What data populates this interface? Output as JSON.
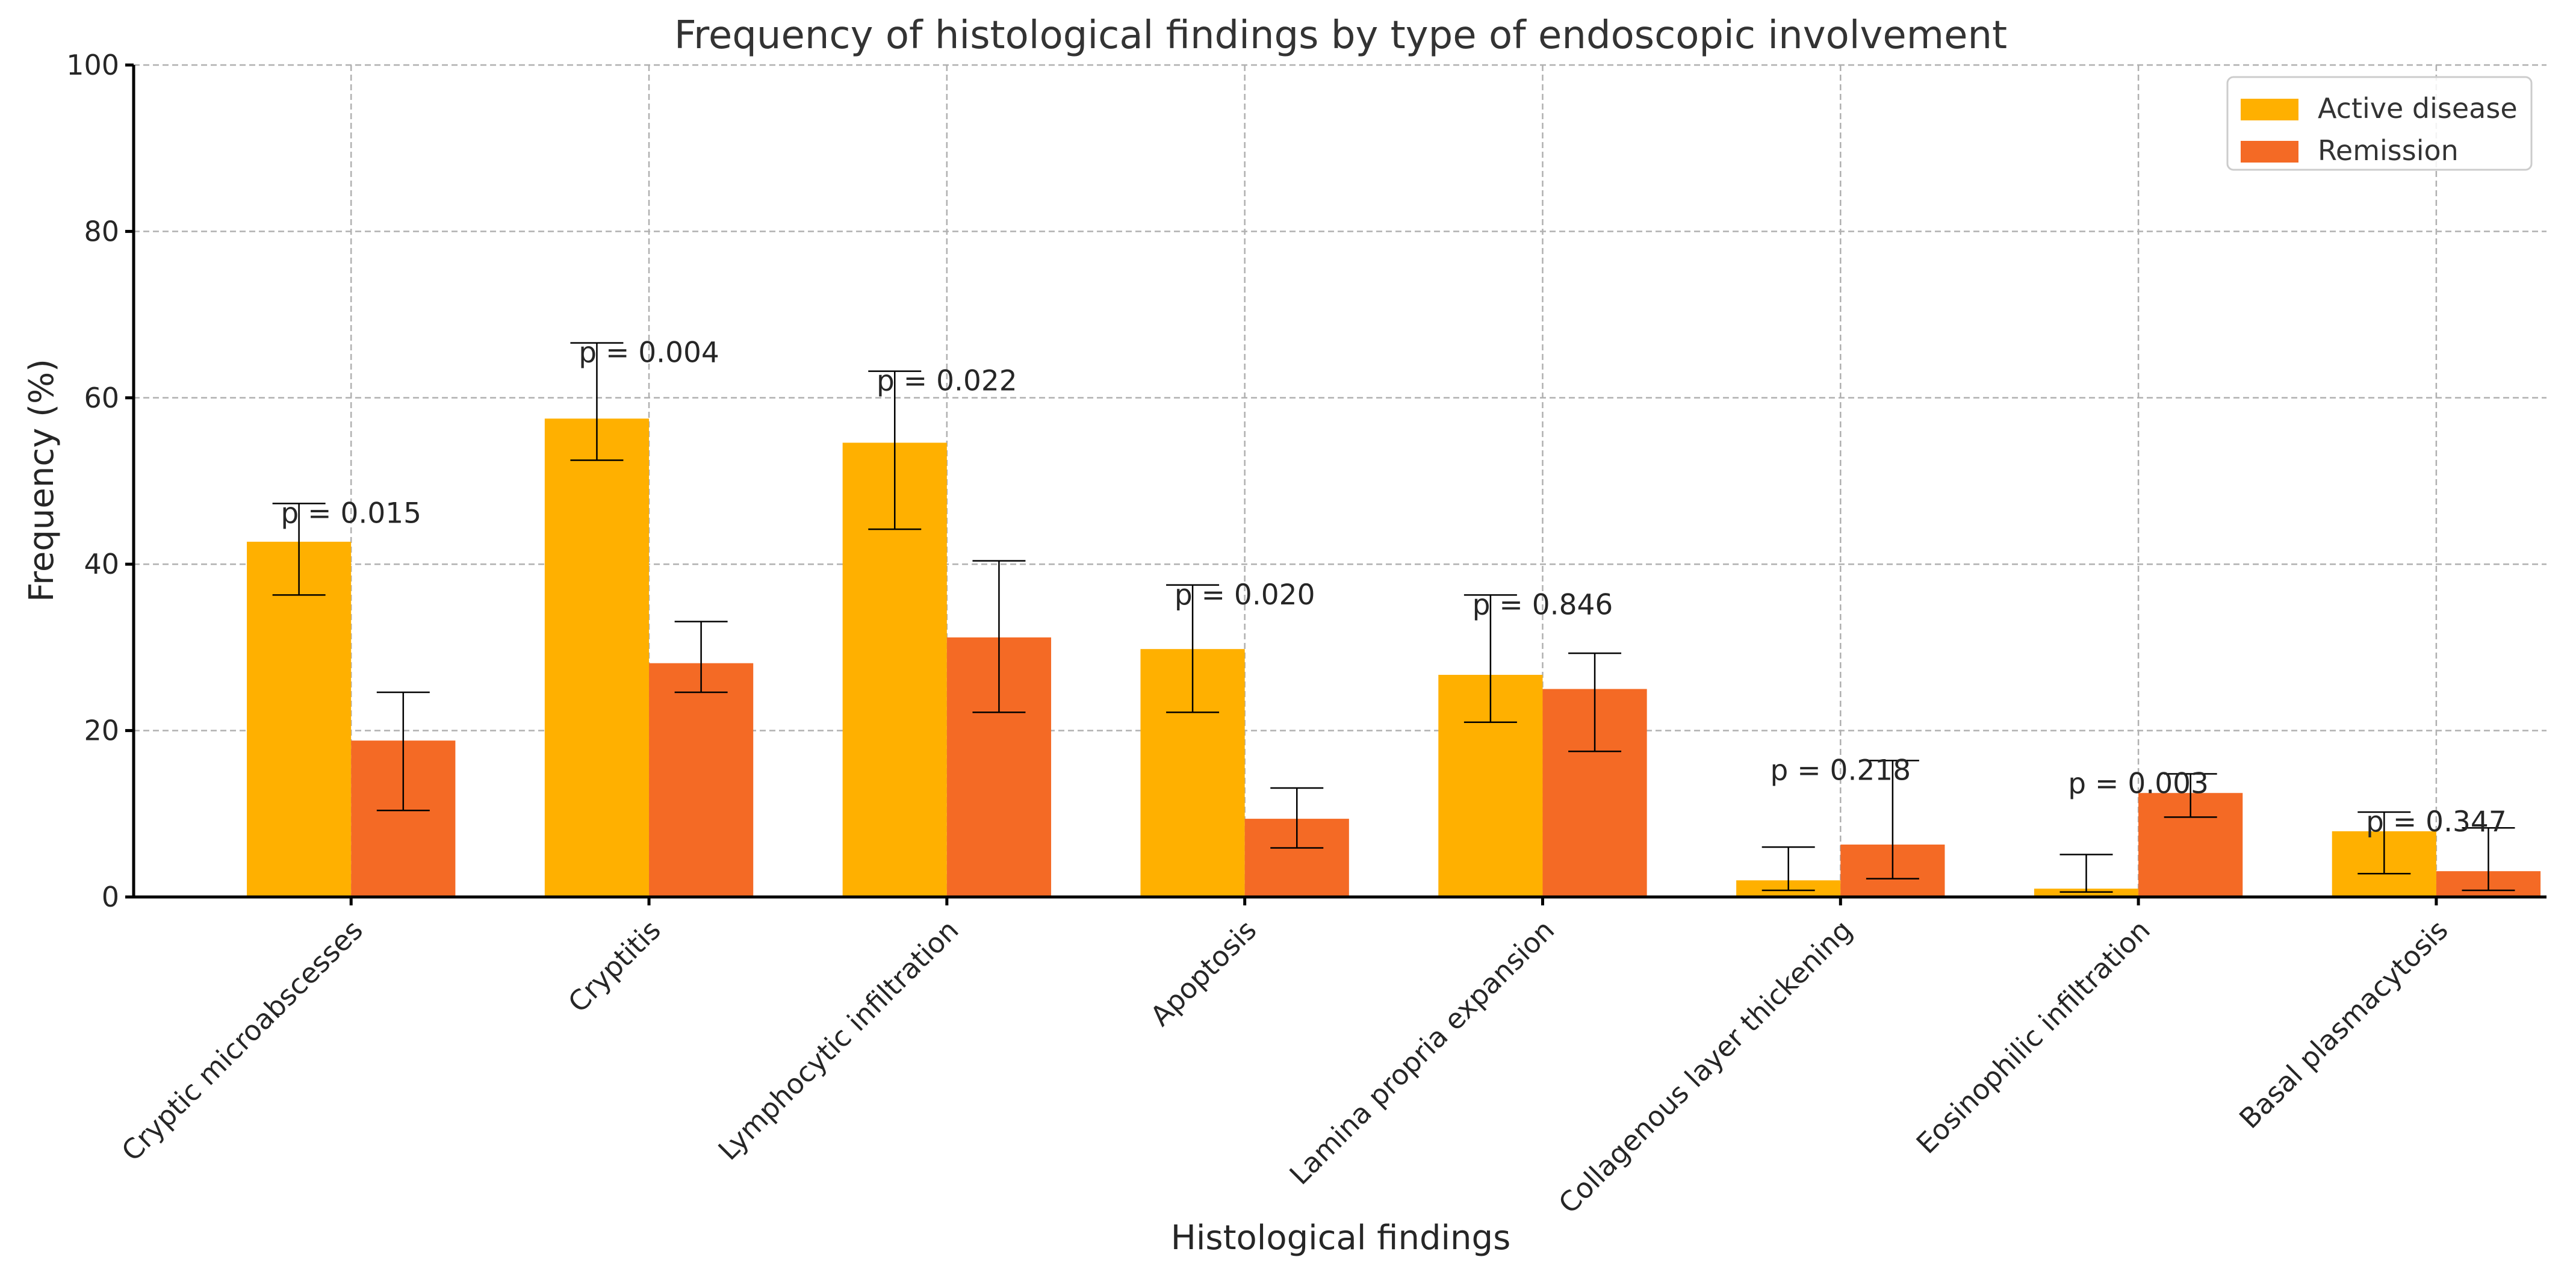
{
  "chart_data": {
    "type": "bar",
    "title": "Frequency of histological findings by type of endoscopic involvement",
    "xlabel": "Histological findings",
    "ylabel": "Frequency (%)",
    "ylim": [
      0,
      100
    ],
    "yticks": [
      0,
      20,
      40,
      60,
      80,
      100
    ],
    "grid": true,
    "legend_position": "top-right",
    "categories": [
      "Cryptic microabscesses",
      "Cryptitis",
      "Lymphocytic infiltration",
      "Apoptosis",
      "Lamina propria expansion",
      "Collagenous layer thickening",
      "Eosinophilic infiltration",
      "Basal plasmacytosis"
    ],
    "series": [
      {
        "name": "Active disease",
        "color": "#FFB000",
        "values": [
          42.7,
          57.5,
          54.6,
          29.8,
          26.7,
          2.0,
          1.0,
          7.9
        ],
        "err_low": [
          36.3,
          52.5,
          44.2,
          22.2,
          21.0,
          0.8,
          0.6,
          2.8
        ],
        "err_high": [
          47.3,
          66.6,
          63.2,
          37.5,
          36.3,
          6.0,
          5.1,
          10.2
        ]
      },
      {
        "name": "Remission",
        "color": "#F46A25",
        "values": [
          18.8,
          28.1,
          31.2,
          9.4,
          25.0,
          6.3,
          12.5,
          3.1
        ],
        "err_low": [
          10.4,
          24.6,
          22.2,
          5.9,
          17.5,
          2.2,
          9.6,
          0.8
        ],
        "err_high": [
          24.6,
          33.1,
          40.4,
          13.1,
          29.3,
          16.4,
          14.8,
          8.3
        ]
      }
    ],
    "annotations": [
      "p = 0.015",
      "p = 0.004",
      "p = 0.022",
      "p = 0.020",
      "p = 0.846",
      "p = 0.218",
      "p = 0.003",
      "p = 0.347"
    ]
  }
}
